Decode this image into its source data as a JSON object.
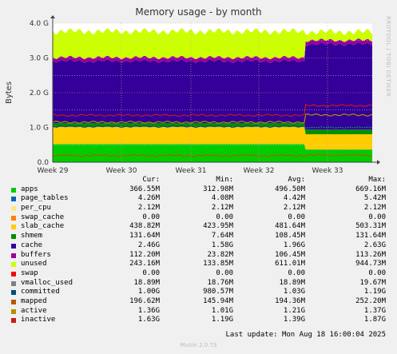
{
  "title": "Memory usage - by month",
  "side_label": "RRDTOOL / TOBI OETIKER",
  "footer": "Munin 2.0.73",
  "last_update": "Last update: Mon Aug 18 16:00:04 2025",
  "legend_headers": {
    "cur": "Cur:",
    "min": "Min:",
    "avg": "Avg:",
    "max": "Max:"
  },
  "legend": [
    {
      "name": "apps",
      "color": "#00cc00",
      "cur": "366.55M",
      "min": "312.98M",
      "avg": "496.50M",
      "max": "669.16M"
    },
    {
      "name": "page_tables",
      "color": "#0066b3",
      "cur": "4.26M",
      "min": "4.08M",
      "avg": "4.42M",
      "max": "5.42M"
    },
    {
      "name": "per_cpu",
      "color": "#ffe680",
      "cur": "2.12M",
      "min": "2.12M",
      "avg": "2.12M",
      "max": "2.12M"
    },
    {
      "name": "swap_cache",
      "color": "#ff8000",
      "cur": "0.00",
      "min": "0.00",
      "avg": "0.00",
      "max": "0.00"
    },
    {
      "name": "slab_cache",
      "color": "#ffcc00",
      "cur": "438.82M",
      "min": "423.95M",
      "avg": "481.64M",
      "max": "503.31M"
    },
    {
      "name": "shmem",
      "color": "#008f00",
      "cur": "131.64M",
      "min": "7.64M",
      "avg": "108.45M",
      "max": "131.64M"
    },
    {
      "name": "cache",
      "color": "#330099",
      "cur": "2.46G",
      "min": "1.58G",
      "avg": "1.96G",
      "max": "2.63G"
    },
    {
      "name": "buffers",
      "color": "#990099",
      "cur": "112.20M",
      "min": "23.82M",
      "avg": "106.45M",
      "max": "113.26M"
    },
    {
      "name": "unused",
      "color": "#ccff00",
      "cur": "243.16M",
      "min": "133.85M",
      "avg": "611.01M",
      "max": "944.73M"
    },
    {
      "name": "swap",
      "color": "#ff0000",
      "cur": "0.00",
      "min": "0.00",
      "avg": "0.00",
      "max": "0.00"
    },
    {
      "name": "vmalloc_used",
      "color": "#808080",
      "cur": "18.89M",
      "min": "18.76M",
      "avg": "18.89M",
      "max": "19.67M"
    },
    {
      "name": "committed",
      "color": "#004d80",
      "cur": "1.00G",
      "min": "980.57M",
      "avg": "1.03G",
      "max": "1.19G"
    },
    {
      "name": "mapped",
      "color": "#b35a00",
      "cur": "196.62M",
      "min": "145.94M",
      "avg": "194.36M",
      "max": "252.20M"
    },
    {
      "name": "active",
      "color": "#b38f00",
      "cur": "1.36G",
      "min": "1.01G",
      "avg": "1.21G",
      "max": "1.37G"
    },
    {
      "name": "inactive",
      "color": "#c71a1a",
      "cur": "1.63G",
      "min": "1.19G",
      "avg": "1.39G",
      "max": "1.87G"
    }
  ],
  "chart_data": {
    "type": "area",
    "title": "Memory usage - by month",
    "ylabel": "Bytes",
    "ylim": [
      0,
      4
    ],
    "y_unit": "G",
    "y_ticks": [
      "0.0",
      "1.0 G",
      "2.0 G",
      "3.0 G",
      "4.0 G"
    ],
    "x_ticks": [
      "Week 29",
      "Week 30",
      "Week 31",
      "Week 32",
      "Week 33"
    ],
    "grid": true,
    "stacked_series": [
      {
        "name": "apps",
        "color": "#00cc00",
        "before": 0.52,
        "after": 0.36
      },
      {
        "name": "page_tables",
        "color": "#0066b3",
        "before": 0.004,
        "after": 0.004
      },
      {
        "name": "per_cpu",
        "color": "#ffe680",
        "before": 0.002,
        "after": 0.002
      },
      {
        "name": "slab_cache",
        "color": "#ffcc00",
        "before": 0.49,
        "after": 0.44
      },
      {
        "name": "shmem",
        "color": "#008f00",
        "before": 0.11,
        "after": 0.13
      },
      {
        "name": "cache",
        "color": "#330099",
        "before": 1.78,
        "after": 2.46
      },
      {
        "name": "buffers",
        "color": "#990099",
        "before": 0.107,
        "after": 0.112
      },
      {
        "name": "unused",
        "color": "#ccff00",
        "before": 0.75,
        "after": 0.24
      }
    ],
    "line_series": [
      {
        "name": "committed",
        "color": "#004d80",
        "before": 1.03,
        "after": 1.0
      },
      {
        "name": "mapped",
        "color": "#b35a00",
        "before": 0.19,
        "after": 0.2
      },
      {
        "name": "active",
        "color": "#b38f00",
        "before": 1.15,
        "after": 1.36
      },
      {
        "name": "inactive",
        "color": "#c71a1a",
        "before": 1.35,
        "after": 1.63
      }
    ],
    "change_point_fraction": 0.79
  }
}
